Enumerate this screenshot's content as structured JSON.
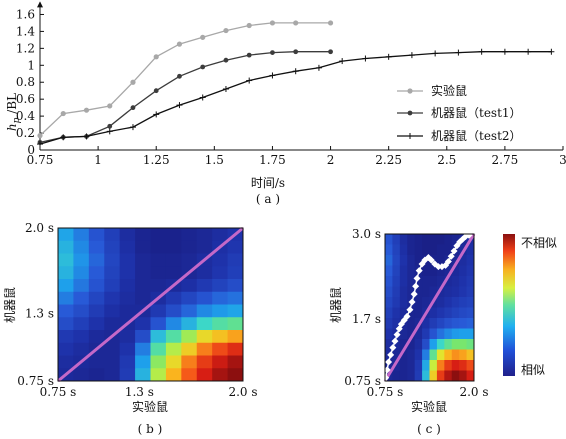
{
  "colors": {
    "real": "#a8a8a8",
    "robot1": "#3c3c3c",
    "robot2": "#111111",
    "diagonal": "#c468c8",
    "path": "#ffffff"
  },
  "chart_data": [
    {
      "type": "line",
      "panel": "a",
      "caption": "( a )",
      "xlabel": "时间/s",
      "ylabel_main": "h",
      "ylabel_sub": "p",
      "ylabel_tail": " /BL",
      "xlim": [
        0.75,
        3.0
      ],
      "ylim": [
        0,
        1.7
      ],
      "xticks": [
        "0.75",
        "1",
        "1.25",
        "1.5",
        "1.75",
        "2",
        "2.25",
        "2.5",
        "2.75",
        "3"
      ],
      "xtick_values": [
        0.75,
        1.0,
        1.25,
        1.5,
        1.75,
        2.0,
        2.25,
        2.5,
        2.75,
        3.0
      ],
      "yticks": [
        "0",
        "0.2",
        "0.4",
        "0.6",
        "0.8",
        "1",
        "1.2",
        "1.4",
        "1.6"
      ],
      "ytick_values": [
        0,
        0.2,
        0.4,
        0.6,
        0.8,
        1.0,
        1.2,
        1.4,
        1.6
      ],
      "legend_position": "right",
      "series": [
        {
          "name": "实验鼠",
          "marker": "circle",
          "x": [
            0.75,
            0.85,
            0.95,
            1.05,
            1.15,
            1.25,
            1.35,
            1.45,
            1.55,
            1.65,
            1.75,
            1.85,
            2.0
          ],
          "y": [
            0.17,
            0.43,
            0.47,
            0.52,
            0.8,
            1.1,
            1.25,
            1.33,
            1.41,
            1.47,
            1.5,
            1.5,
            1.5
          ]
        },
        {
          "name": "机器鼠（test1）",
          "marker": "dot",
          "x": [
            0.75,
            0.85,
            0.95,
            1.05,
            1.15,
            1.25,
            1.35,
            1.45,
            1.55,
            1.65,
            1.75,
            1.85,
            2.0
          ],
          "y": [
            0.09,
            0.15,
            0.16,
            0.28,
            0.5,
            0.7,
            0.87,
            0.98,
            1.06,
            1.12,
            1.15,
            1.16,
            1.16
          ]
        },
        {
          "name": "机器鼠（test2）",
          "marker": "plus",
          "x": [
            0.75,
            0.85,
            0.95,
            1.05,
            1.15,
            1.25,
            1.35,
            1.45,
            1.55,
            1.65,
            1.75,
            1.85,
            1.95,
            2.05,
            2.15,
            2.25,
            2.35,
            2.45,
            2.55,
            2.65,
            2.75,
            2.85,
            2.95
          ],
          "y": [
            0.07,
            0.15,
            0.16,
            0.22,
            0.27,
            0.42,
            0.53,
            0.62,
            0.72,
            0.82,
            0.88,
            0.93,
            0.97,
            1.05,
            1.08,
            1.1,
            1.12,
            1.14,
            1.15,
            1.16,
            1.16,
            1.16,
            1.16
          ]
        }
      ]
    },
    {
      "type": "heatmap",
      "panel": "b",
      "caption": "( b )",
      "xlabel": "实验鼠",
      "ylabel": "机器鼠",
      "xticks": [
        "0.75 s",
        "1.3 s",
        "2.0 s"
      ],
      "yticks": [
        "0.75 s",
        "1.3 s",
        "2.0 s"
      ],
      "xlim": [
        0.75,
        2.0
      ],
      "ylim": [
        0.75,
        2.0
      ],
      "tick_values": [
        0.75,
        1.3,
        2.0
      ],
      "diagonal": true,
      "grid": [
        [
          0.35,
          0.28,
          0.2,
          0.14,
          0.08,
          0.05,
          0.04,
          0.04,
          0.05,
          0.06,
          0.08,
          0.1
        ],
        [
          0.38,
          0.3,
          0.22,
          0.15,
          0.09,
          0.05,
          0.04,
          0.04,
          0.05,
          0.06,
          0.09,
          0.11
        ],
        [
          0.4,
          0.32,
          0.24,
          0.16,
          0.1,
          0.06,
          0.05,
          0.05,
          0.06,
          0.08,
          0.1,
          0.13
        ],
        [
          0.38,
          0.3,
          0.22,
          0.15,
          0.1,
          0.06,
          0.05,
          0.05,
          0.06,
          0.08,
          0.11,
          0.14
        ],
        [
          0.34,
          0.27,
          0.2,
          0.14,
          0.09,
          0.06,
          0.06,
          0.07,
          0.09,
          0.12,
          0.15,
          0.18
        ],
        [
          0.28,
          0.22,
          0.16,
          0.11,
          0.08,
          0.06,
          0.08,
          0.12,
          0.16,
          0.2,
          0.24,
          0.26
        ],
        [
          0.22,
          0.18,
          0.13,
          0.09,
          0.07,
          0.07,
          0.12,
          0.18,
          0.24,
          0.3,
          0.33,
          0.35
        ],
        [
          0.18,
          0.14,
          0.1,
          0.07,
          0.07,
          0.1,
          0.2,
          0.3,
          0.38,
          0.46,
          0.5,
          0.52
        ],
        [
          0.12,
          0.1,
          0.07,
          0.06,
          0.08,
          0.18,
          0.4,
          0.5,
          0.6,
          0.7,
          0.74,
          0.78
        ],
        [
          0.1,
          0.08,
          0.06,
          0.06,
          0.1,
          0.28,
          0.5,
          0.62,
          0.72,
          0.82,
          0.88,
          0.92
        ],
        [
          0.08,
          0.07,
          0.06,
          0.06,
          0.12,
          0.34,
          0.58,
          0.7,
          0.82,
          0.9,
          0.95,
          0.98
        ],
        [
          0.07,
          0.06,
          0.05,
          0.06,
          0.13,
          0.38,
          0.62,
          0.76,
          0.86,
          0.94,
          0.98,
          1.0
        ]
      ]
    },
    {
      "type": "heatmap",
      "panel": "c",
      "caption": "( c )",
      "xlabel": "实验鼠",
      "ylabel": "机器鼠",
      "xticks": [
        "0.75 s",
        "2.0 s"
      ],
      "yticks": [
        "0.75 s",
        "1.7 s",
        "3.0 s"
      ],
      "xlim": [
        0.75,
        2.0
      ],
      "ylim": [
        0.75,
        3.0
      ],
      "xtick_values": [
        0.75,
        2.0
      ],
      "ytick_values": [
        0.75,
        1.7,
        3.0
      ],
      "diagonal": true,
      "colorbar": {
        "high": "不相似",
        "low": "相似"
      },
      "path_x": [
        0.76,
        0.78,
        0.8,
        0.83,
        0.86,
        0.89,
        0.92,
        0.95,
        0.98,
        1.02,
        1.06,
        1.1,
        1.13,
        1.16,
        1.18,
        1.2,
        1.23,
        1.27,
        1.31,
        1.36,
        1.4,
        1.45,
        1.5,
        1.55,
        1.6,
        1.64,
        1.68,
        1.72,
        1.76,
        1.8,
        1.84,
        1.88,
        1.93
      ],
      "path_y": [
        0.8,
        0.92,
        1.04,
        1.15,
        1.26,
        1.36,
        1.46,
        1.55,
        1.62,
        1.68,
        1.74,
        1.84,
        1.96,
        2.08,
        2.2,
        2.32,
        2.44,
        2.54,
        2.6,
        2.64,
        2.6,
        2.54,
        2.5,
        2.5,
        2.52,
        2.58,
        2.66,
        2.74,
        2.82,
        2.88,
        2.92,
        2.96,
        2.98
      ],
      "grid": [
        [
          0.2,
          0.14,
          0.08,
          0.05,
          0.04,
          0.03,
          0.03,
          0.03,
          0.04,
          0.05,
          0.06,
          0.08
        ],
        [
          0.22,
          0.15,
          0.09,
          0.05,
          0.04,
          0.03,
          0.03,
          0.04,
          0.04,
          0.05,
          0.07,
          0.09
        ],
        [
          0.24,
          0.16,
          0.1,
          0.06,
          0.04,
          0.04,
          0.04,
          0.04,
          0.05,
          0.06,
          0.08,
          0.1
        ],
        [
          0.22,
          0.15,
          0.09,
          0.06,
          0.05,
          0.04,
          0.04,
          0.05,
          0.06,
          0.07,
          0.09,
          0.11
        ],
        [
          0.2,
          0.14,
          0.09,
          0.06,
          0.05,
          0.05,
          0.05,
          0.06,
          0.07,
          0.08,
          0.1,
          0.12
        ],
        [
          0.18,
          0.13,
          0.08,
          0.06,
          0.05,
          0.05,
          0.06,
          0.07,
          0.08,
          0.09,
          0.11,
          0.13
        ],
        [
          0.16,
          0.12,
          0.08,
          0.06,
          0.05,
          0.06,
          0.07,
          0.08,
          0.1,
          0.12,
          0.14,
          0.15
        ],
        [
          0.14,
          0.1,
          0.07,
          0.05,
          0.05,
          0.07,
          0.09,
          0.11,
          0.13,
          0.15,
          0.17,
          0.18
        ],
        [
          0.12,
          0.09,
          0.06,
          0.05,
          0.06,
          0.09,
          0.13,
          0.16,
          0.19,
          0.21,
          0.22,
          0.23
        ],
        [
          0.1,
          0.08,
          0.06,
          0.05,
          0.07,
          0.12,
          0.2,
          0.26,
          0.3,
          0.33,
          0.34,
          0.34
        ],
        [
          0.08,
          0.07,
          0.05,
          0.05,
          0.08,
          0.18,
          0.34,
          0.46,
          0.52,
          0.56,
          0.56,
          0.54
        ],
        [
          0.07,
          0.06,
          0.05,
          0.06,
          0.1,
          0.28,
          0.52,
          0.68,
          0.76,
          0.8,
          0.78,
          0.74
        ],
        [
          0.06,
          0.06,
          0.05,
          0.06,
          0.12,
          0.36,
          0.64,
          0.82,
          0.9,
          0.94,
          0.92,
          0.88
        ],
        [
          0.06,
          0.05,
          0.05,
          0.06,
          0.13,
          0.4,
          0.72,
          0.9,
          0.97,
          1.0,
          0.98,
          0.94
        ]
      ]
    }
  ]
}
